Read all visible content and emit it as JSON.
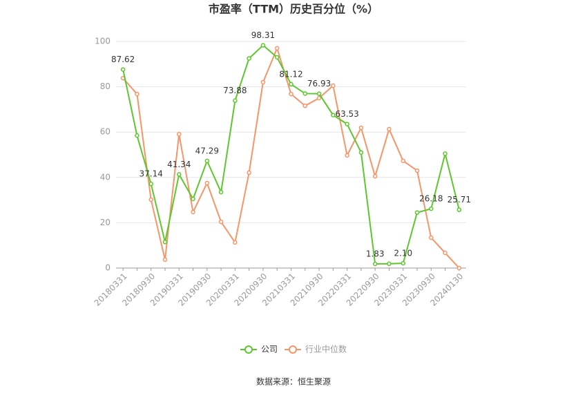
{
  "chart_data": {
    "type": "line",
    "title": "市盈率（TTM）历史百分位（%）",
    "categories": [
      "20180331",
      null,
      "20180930",
      null,
      "20190331",
      null,
      "20190930",
      null,
      "20200331",
      null,
      "20200930",
      null,
      "20210331",
      null,
      "20210930",
      null,
      "20220331",
      null,
      "20220930",
      null,
      "20230331",
      null,
      "20230930",
      null,
      "20240130"
    ],
    "series": [
      {
        "name": "公司",
        "color": "#5cc72c",
        "values": [
          87.62,
          58.5,
          37.14,
          11.5,
          41.34,
          30.5,
          47.29,
          33.5,
          73.88,
          92.5,
          98.31,
          93,
          81.12,
          77,
          76.93,
          67.5,
          63.53,
          51,
          1.83,
          1.9,
          2.1,
          24.5,
          26.18,
          50.5,
          25.71
        ],
        "value_labels": [
          "87.62",
          null,
          "37.14",
          null,
          "41.34",
          null,
          "47.29",
          null,
          "73.88",
          null,
          "98.31",
          null,
          "81.12",
          null,
          "76.93",
          null,
          "63.53",
          null,
          "1.83",
          null,
          "2.10",
          null,
          "26.18",
          null,
          "25.71"
        ]
      },
      {
        "name": "行业中位数",
        "color": "#f79468",
        "values": [
          83.8,
          76.8,
          30.2,
          3.7,
          59.1,
          24.7,
          37.5,
          20.4,
          11.3,
          42.1,
          82,
          97,
          76.8,
          71.6,
          75,
          80.5,
          49.7,
          61.9,
          40.5,
          61.3,
          47.3,
          43,
          13.4,
          6.7,
          0
        ]
      }
    ],
    "ylim": [
      0,
      100
    ],
    "yticks": [
      0,
      20,
      40,
      60,
      80,
      100
    ],
    "grid": true,
    "source": "数据来源：恒生聚源"
  }
}
